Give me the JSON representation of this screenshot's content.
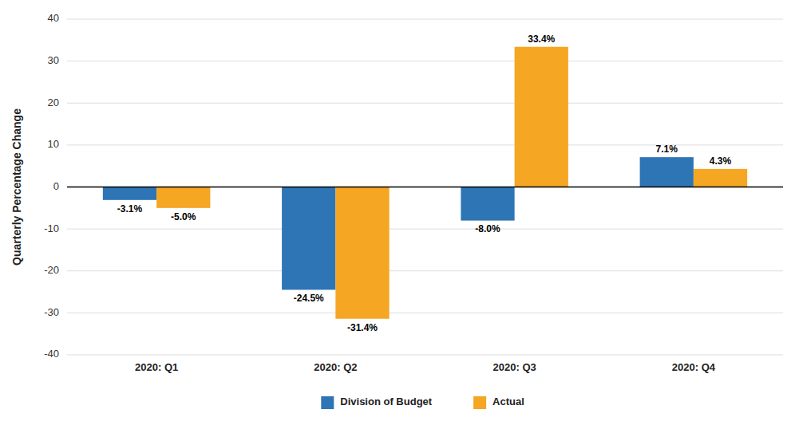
{
  "chart_data": {
    "type": "bar",
    "y_label": "Quarterly Percentage Change",
    "categories": [
      "2020: Q1",
      "2020: Q2",
      "2020: Q3",
      "2020: Q4"
    ],
    "series": [
      {
        "name": "Division of Budget",
        "color": "#2E75B6",
        "values": [
          -3.1,
          -24.5,
          -8.0,
          7.1
        ],
        "value_labels": [
          "-3.1%",
          "-24.5%",
          "-8.0%",
          "7.1%"
        ]
      },
      {
        "name": "Actual",
        "color": "#F5A623",
        "values": [
          -5.0,
          -31.4,
          33.4,
          4.3
        ],
        "value_labels": [
          "-5.0%",
          "-31.4%",
          "33.4%",
          "4.3%"
        ]
      }
    ],
    "ylim": [
      -40,
      40
    ],
    "yticks": [
      -40,
      -30,
      -20,
      -10,
      0,
      10,
      20,
      30,
      40
    ],
    "grid": true,
    "legend": "bottom",
    "data_labels": true
  }
}
